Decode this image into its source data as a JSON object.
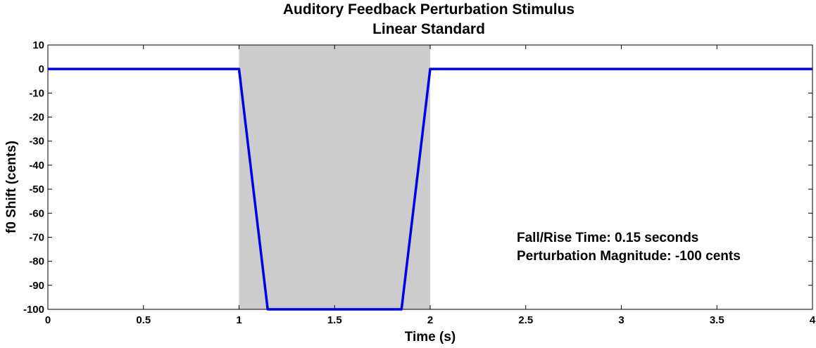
{
  "chart_data": {
    "type": "line",
    "title": "Auditory Feedback Perturbation Stimulus",
    "subtitle": "Linear Standard",
    "xlabel": "Time (s)",
    "ylabel": "f0 Shift (cents)",
    "xlim": [
      0,
      4
    ],
    "ylim": [
      -100,
      10
    ],
    "xticks": [
      0,
      0.5,
      1,
      1.5,
      2,
      2.5,
      3,
      3.5,
      4
    ],
    "xtick_labels": [
      "0",
      "0.5",
      "1",
      "1.5",
      "2",
      "2.5",
      "3",
      "3.5",
      "4"
    ],
    "yticks": [
      10,
      0,
      -10,
      -20,
      -30,
      -40,
      -50,
      -60,
      -70,
      -80,
      -90,
      -100
    ],
    "ytick_labels": [
      "10",
      "0",
      "-10",
      "-20",
      "-30",
      "-40",
      "-50",
      "-60",
      "-70",
      "-80",
      "-90",
      "-100"
    ],
    "shaded_region": {
      "x": [
        1,
        2
      ],
      "color": "#cccccc"
    },
    "series": [
      {
        "color": "#0000e6",
        "x": [
          0,
          1,
          1.15,
          1.85,
          2,
          4
        ],
        "y": [
          0,
          0,
          -100,
          -100,
          0,
          0
        ]
      }
    ],
    "annotations": [
      "Fall/Rise Time: 0.15 seconds",
      "Perturbation Magnitude: -100 cents"
    ],
    "grid": false
  }
}
